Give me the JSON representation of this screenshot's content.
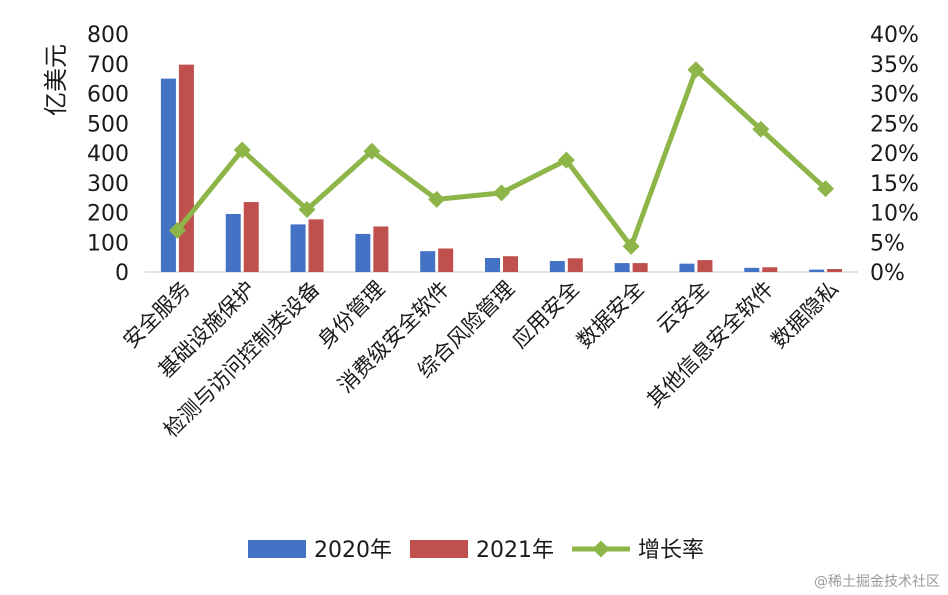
{
  "chart_data": {
    "type": "bar",
    "categories": [
      "安全服务",
      "基础设施保护",
      "检测与访问控制类设备",
      "身份管理",
      "消费级安全软件",
      "综合风险管理",
      "应用安全",
      "数据安全",
      "云安全",
      "其他信息安全软件",
      "数据隐私"
    ],
    "series": [
      {
        "name": "2020年",
        "type": "bar",
        "axis": "left",
        "color": "#4472C4",
        "values": [
          650,
          195,
          160,
          128,
          70,
          47,
          37,
          30,
          28,
          14,
          8
        ]
      },
      {
        "name": "2021年",
        "type": "bar",
        "axis": "left",
        "color": "#C0504D",
        "values": [
          697,
          235,
          177,
          153,
          79,
          53,
          46,
          30,
          40,
          16,
          10
        ]
      },
      {
        "name": "增长率",
        "type": "line",
        "axis": "right",
        "color": "#8DB548",
        "values": [
          7,
          20.5,
          10.5,
          20.3,
          12.2,
          13.3,
          18.8,
          4.3,
          34,
          24,
          14
        ]
      }
    ],
    "ylabel": "亿美元",
    "ylim": [
      0,
      800
    ],
    "yticks": [
      "0",
      "100",
      "200",
      "300",
      "400",
      "500",
      "600",
      "700",
      "800"
    ],
    "y2lim": [
      0,
      40
    ],
    "y2ticks": [
      "0%",
      "5%",
      "10%",
      "15%",
      "20%",
      "25%",
      "30%",
      "35%",
      "40%"
    ],
    "grid": false,
    "legend_position": "bottom"
  },
  "watermark": "@稀土掘金技术社区"
}
